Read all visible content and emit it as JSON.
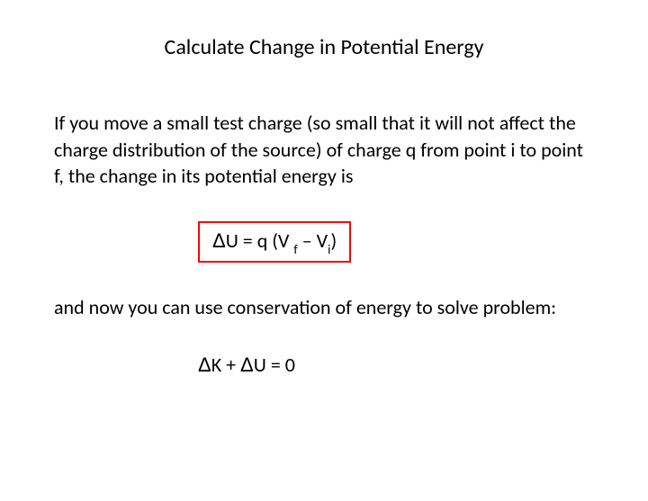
{
  "title": "Calculate Change in Potential Energy",
  "paragraph1": "If you move a small test charge (so small that it will not affect the charge distribution of the source) of charge q from point i to point f, the change in its potential energy is",
  "equation1": {
    "delta": "Δ",
    "lhs_after": "U = q (V",
    "sub1_space": " ",
    "sub1": "f",
    "middle": " – V",
    "sub2": "i",
    "rhs_paren": ")"
  },
  "paragraph2": "and now you can use conservation of energy to solve problem:",
  "equation2": {
    "delta1": "Δ",
    "k": "K   +   ",
    "delta2": "Δ",
    "u_eq": "U   =   0"
  },
  "styling": {
    "border_color": "#ff0000",
    "background": "#ffffff",
    "text_color": "#000000",
    "title_fontsize": 24,
    "body_fontsize": 22,
    "font_family": "Calibri"
  }
}
